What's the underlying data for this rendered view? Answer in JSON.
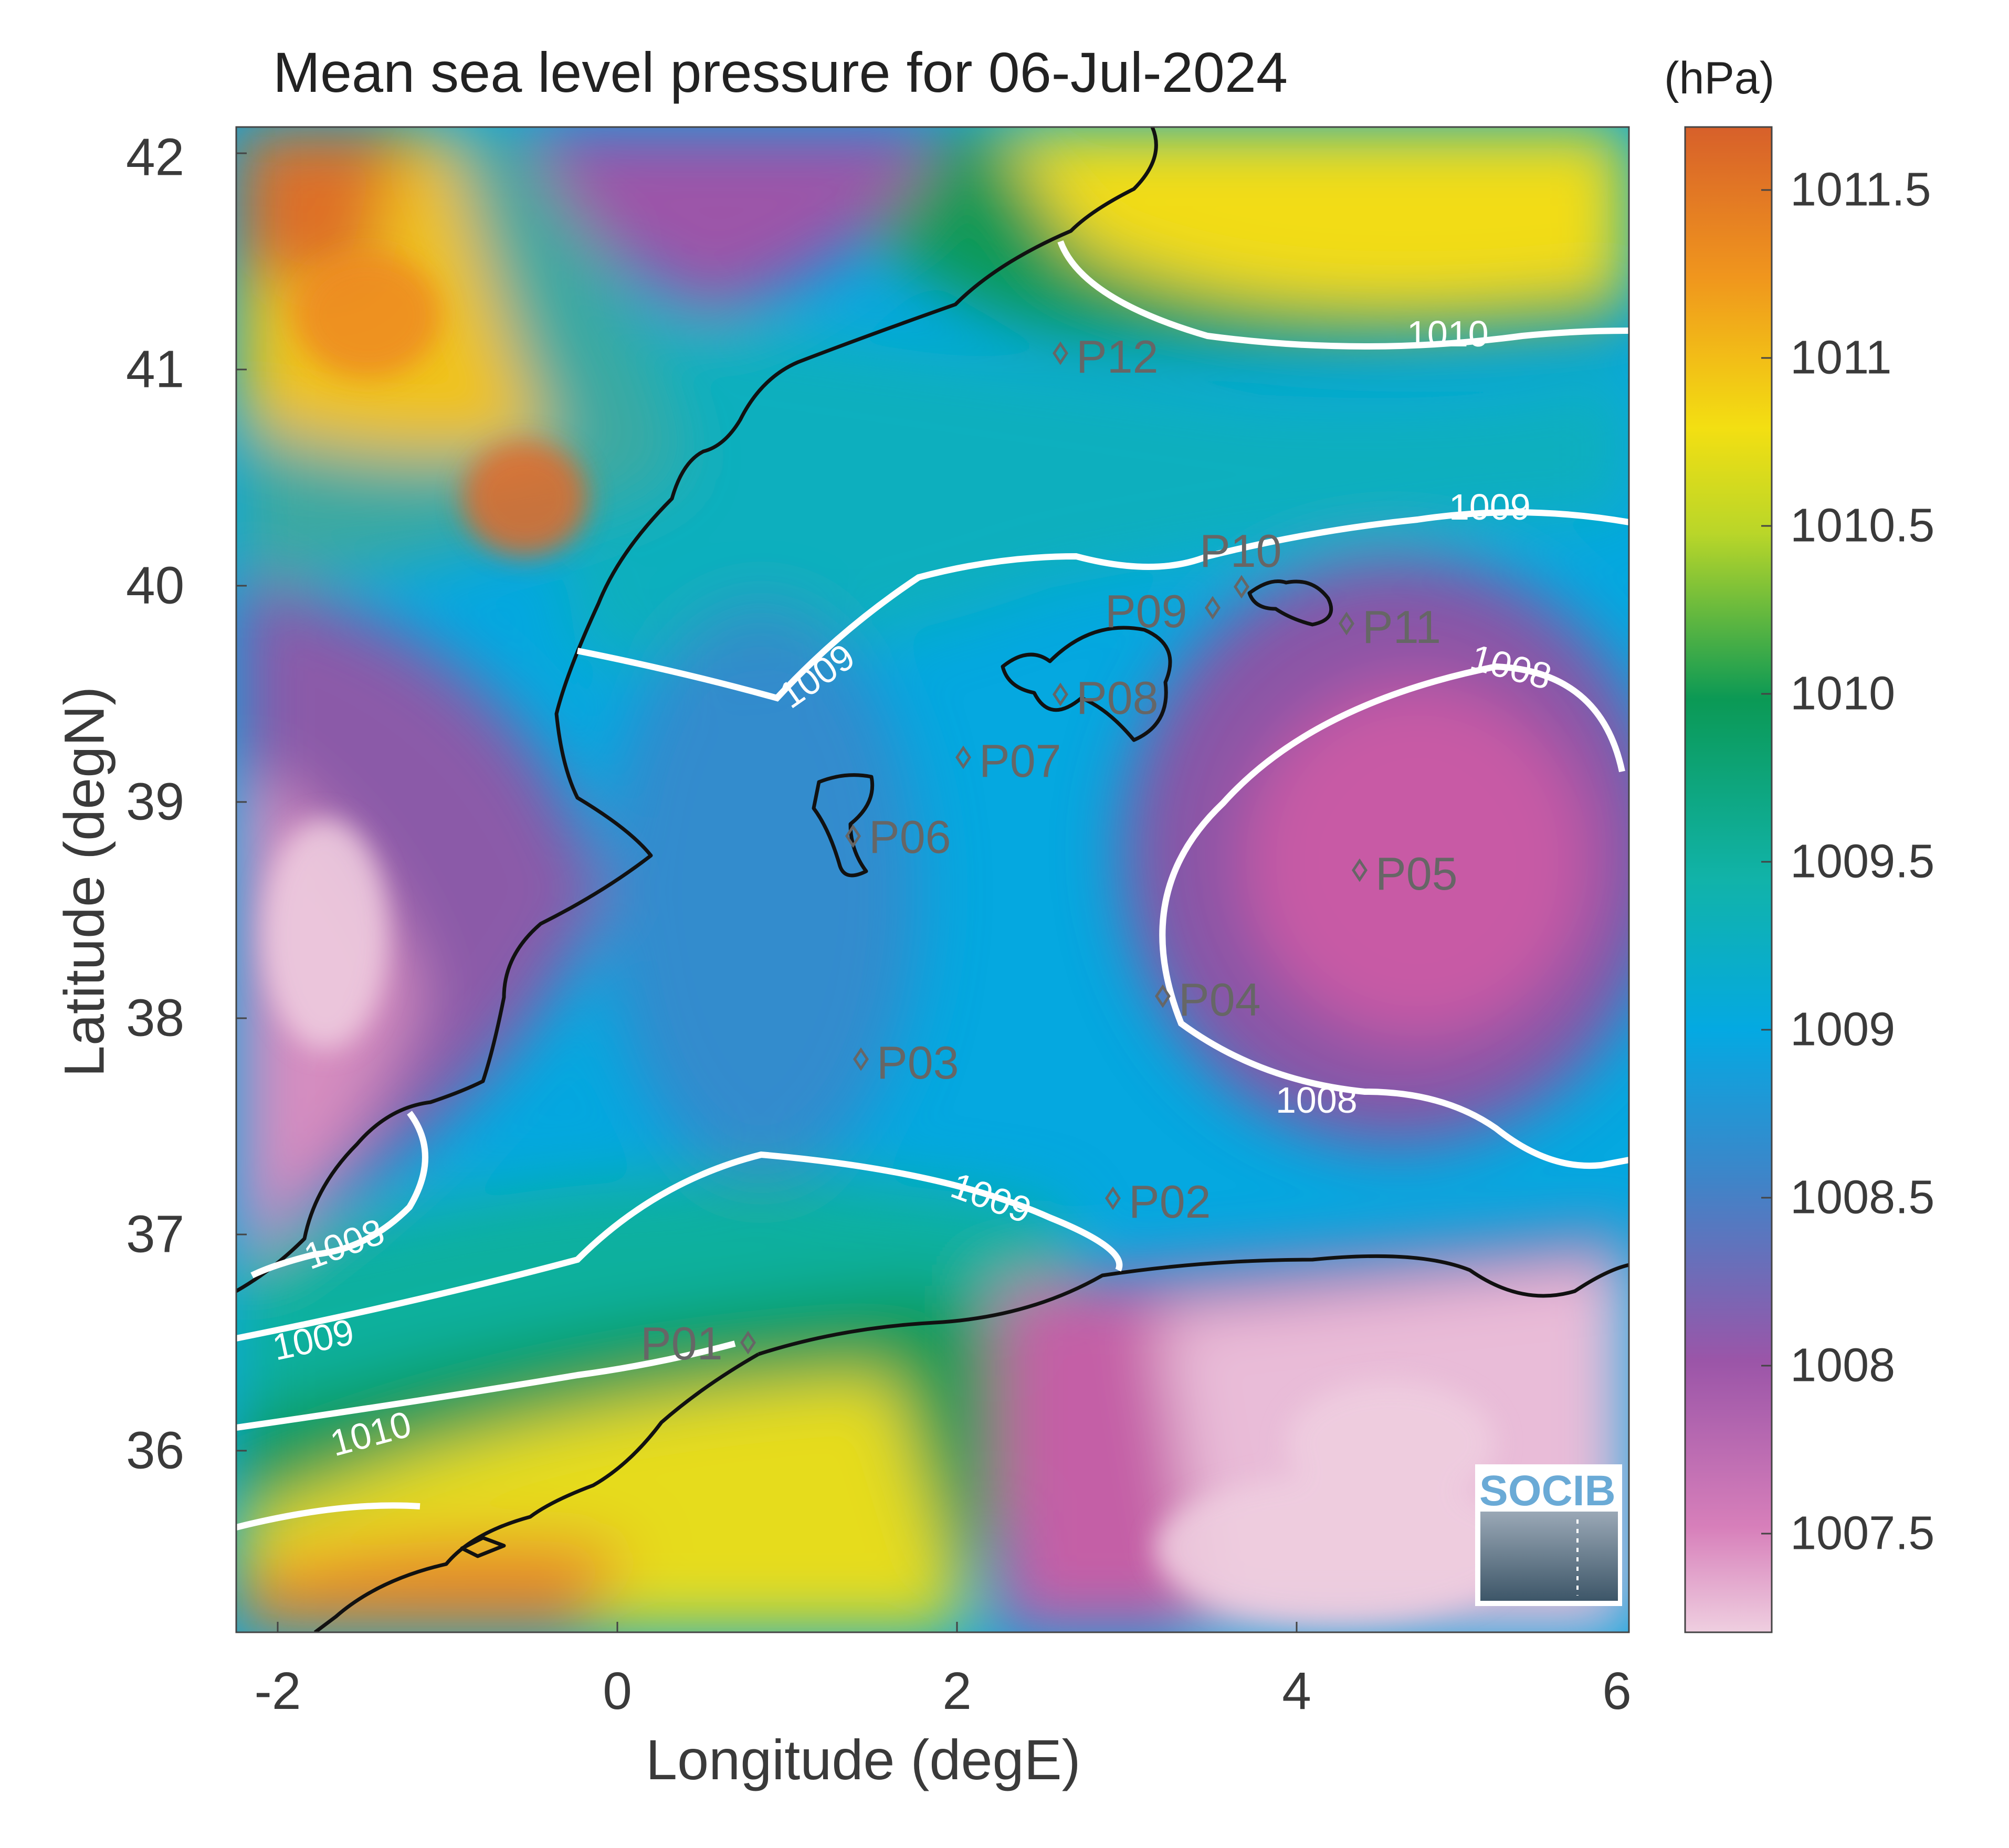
{
  "title": "Mean sea level pressure for 06-Jul-2024",
  "unit_label": "(hPa)",
  "x_axis": {
    "label": "Longitude (degE)",
    "range": [
      -2.2,
      6.0
    ],
    "ticks": [
      {
        "value": -2,
        "label": "-2"
      },
      {
        "value": 0,
        "label": "0"
      },
      {
        "value": 2,
        "label": "2"
      },
      {
        "value": 4,
        "label": "4"
      },
      {
        "value": 6,
        "label": "6"
      }
    ]
  },
  "y_axis": {
    "label": "Latitude (degN)",
    "range": [
      35.2,
      42.15
    ],
    "ticks": [
      {
        "value": 36,
        "label": "36"
      },
      {
        "value": 37,
        "label": "37"
      },
      {
        "value": 38,
        "label": "38"
      },
      {
        "value": 39,
        "label": "39"
      },
      {
        "value": 40,
        "label": "40"
      },
      {
        "value": 41,
        "label": "41"
      },
      {
        "value": 42,
        "label": "42"
      }
    ]
  },
  "colorbar": {
    "range": [
      1007.2,
      1011.7
    ],
    "ticks": [
      {
        "value": 1007.5,
        "label": "1007.5"
      },
      {
        "value": 1008,
        "label": "1008"
      },
      {
        "value": 1008.5,
        "label": "1008.5"
      },
      {
        "value": 1009,
        "label": "1009"
      },
      {
        "value": 1009.5,
        "label": "1009.5"
      },
      {
        "value": 1010,
        "label": "1010"
      },
      {
        "value": 1010.5,
        "label": "1010.5"
      },
      {
        "value": 1011,
        "label": "1011"
      },
      {
        "value": 1011.5,
        "label": "1011.5"
      }
    ]
  },
  "chart_data": {
    "type": "heatmap",
    "title": "Mean sea level pressure for 06-Jul-2024",
    "xlabel": "Longitude (degE)",
    "ylabel": "Latitude (degN)",
    "colorbar_label": "(hPa)",
    "xlim": [
      -2.2,
      6.0
    ],
    "ylim": [
      35.2,
      42.15
    ],
    "clim": [
      1007.2,
      1011.7
    ],
    "contour_labels": [
      {
        "label": "1010",
        "lon": 4.9,
        "lat": 41.15
      },
      {
        "label": "1009",
        "lon": 5.1,
        "lat": 40.3
      },
      {
        "label": "1009",
        "lon": 1.3,
        "lat": 39.75
      },
      {
        "label": "1008",
        "lon": 5.0,
        "lat": 39.6
      },
      {
        "label": "1008",
        "lon": 4.1,
        "lat": 37.6
      },
      {
        "label": "1009",
        "lon": 2.5,
        "lat": 37.0
      },
      {
        "label": "1008",
        "lon": -1.7,
        "lat": 37.0
      },
      {
        "label": "1009",
        "lon": -1.7,
        "lat": 36.5
      },
      {
        "label": "1010",
        "lon": -1.2,
        "lat": 36.1
      }
    ],
    "stations": [
      {
        "label": "P01",
        "lon": 0.85,
        "lat": 36.5
      },
      {
        "label": "P02",
        "lon": 3.0,
        "lat": 37.15
      },
      {
        "label": "P03",
        "lon": 1.5,
        "lat": 37.8
      },
      {
        "label": "P04",
        "lon": 3.3,
        "lat": 38.1
      },
      {
        "label": "P05",
        "lon": 4.5,
        "lat": 38.7
      },
      {
        "label": "P06",
        "lon": 1.45,
        "lat": 38.85
      },
      {
        "label": "P07",
        "lon": 2.1,
        "lat": 39.2
      },
      {
        "label": "P08",
        "lon": 2.7,
        "lat": 39.5
      },
      {
        "label": "P09",
        "lon": 3.6,
        "lat": 39.9
      },
      {
        "label": "P10",
        "lon": 3.75,
        "lat": 40.0
      },
      {
        "label": "P11",
        "lon": 4.4,
        "lat": 39.85
      },
      {
        "label": "P12",
        "lon": 2.65,
        "lat": 41.1
      }
    ]
  },
  "colors": {
    "high": "#d7632a",
    "orange": "#ee8a22",
    "yellow": "#f0e01c",
    "green": "#0a9a58",
    "teal": "#14b4b4",
    "cyan": "#05a8e0",
    "blue": "#3e86c6",
    "purple": "#8856a6",
    "magenta": "#c25ba4",
    "low": "#eec8dc",
    "contour": "#ffffff",
    "coast": "#111111",
    "station": "#666666"
  },
  "logo_text": "SOCIB"
}
